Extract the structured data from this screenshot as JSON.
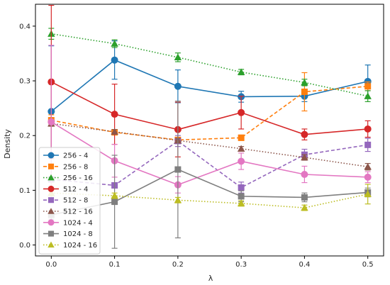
{
  "chart_data": {
    "type": "line",
    "xlabel": "λ",
    "ylabel": "Density",
    "xlim": [
      -0.025,
      0.525
    ],
    "ylim": [
      -0.02,
      0.44
    ],
    "xticks": [
      0.0,
      0.1,
      0.2,
      0.3,
      0.4,
      0.5
    ],
    "xtick_labels": [
      "0.0",
      "0.1",
      "0.2",
      "0.3",
      "0.4",
      "0.5"
    ],
    "yticks": [
      0.0,
      0.1,
      0.2,
      0.3,
      0.4
    ],
    "ytick_labels": [
      "0.0",
      "0.1",
      "0.2",
      "0.3",
      "0.4"
    ],
    "grid": false,
    "legend_position": "lower-left",
    "x": [
      0.0,
      0.1,
      0.2,
      0.3,
      0.4,
      0.5
    ],
    "series": [
      {
        "name": "256 - 4",
        "color": "#1f77b4",
        "marker": "circle",
        "dash": "solid",
        "values": [
          0.244,
          0.338,
          0.29,
          0.271,
          0.272,
          0.299
        ],
        "errors": [
          0.12,
          0.035,
          0.03,
          0.01,
          0.01,
          0.03
        ]
      },
      {
        "name": "256 - 8",
        "color": "#ff7f0e",
        "marker": "square",
        "dash": "dashed",
        "values": [
          0.228,
          0.206,
          0.192,
          0.196,
          0.28,
          0.29
        ],
        "errors": [
          0.01,
          0.005,
          0.005,
          0.005,
          0.035,
          0.008
        ]
      },
      {
        "name": "256 - 16",
        "color": "#2ca02c",
        "marker": "triangle",
        "dash": "dotted",
        "values": [
          0.386,
          0.368,
          0.343,
          0.316,
          0.297,
          0.272
        ],
        "errors": [
          0.01,
          0.007,
          0.008,
          0.005,
          0.006,
          0.01
        ]
      },
      {
        "name": "512 - 4",
        "color": "#d62728",
        "marker": "circle",
        "dash": "solid",
        "values": [
          0.298,
          0.239,
          0.211,
          0.242,
          0.202,
          0.212
        ],
        "errors": [
          0.14,
          0.055,
          0.05,
          0.03,
          0.01,
          0.015
        ]
      },
      {
        "name": "512 - 8",
        "color": "#9467bd",
        "marker": "square",
        "dash": "dashed",
        "values": [
          0.12,
          0.109,
          0.19,
          0.105,
          0.165,
          0.183
        ],
        "errors": [
          0.005,
          0.005,
          0.01,
          0.01,
          0.01,
          0.012
        ]
      },
      {
        "name": "512 - 16",
        "color": "#8c564b",
        "marker": "triangle",
        "dash": "dotted",
        "values": [
          0.222,
          0.207,
          0.191,
          0.176,
          0.16,
          0.143
        ],
        "errors": [
          0.005,
          0.004,
          0.004,
          0.004,
          0.005,
          0.006
        ]
      },
      {
        "name": "1024 - 4",
        "color": "#e377c2",
        "marker": "circle",
        "dash": "solid",
        "values": [
          0.225,
          0.154,
          0.11,
          0.153,
          0.129,
          0.124
        ],
        "errors": [
          0.14,
          0.03,
          0.015,
          0.015,
          0.015,
          0.01
        ]
      },
      {
        "name": "1024 - 8",
        "color": "#7f7f7f",
        "marker": "square",
        "dash": "solid",
        "values": [
          0.055,
          0.079,
          0.138,
          0.089,
          0.087,
          0.096
        ],
        "errors": [
          0.008,
          0.085,
          0.125,
          0.01,
          0.008,
          0.008
        ]
      },
      {
        "name": "1024 - 16",
        "color": "#bcbd22",
        "marker": "triangle",
        "dash": "dotted",
        "values": [
          0.095,
          0.09,
          0.082,
          0.076,
          0.068,
          0.093
        ],
        "errors": [
          0.005,
          0.005,
          0.005,
          0.005,
          0.005,
          0.018
        ]
      }
    ]
  }
}
